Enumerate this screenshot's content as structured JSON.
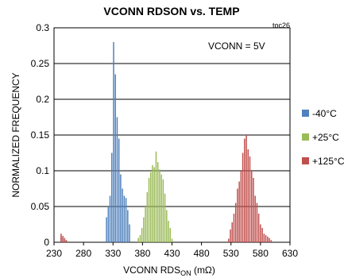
{
  "chart_data": {
    "type": "bar",
    "title": "VCONN RDSON vs. TEMP",
    "tag": "toc26",
    "annotation": "VCONN = 5V",
    "xlabel": {
      "main": "VCONN RDS",
      "sub": "ON",
      "unit": " (mΩ)"
    },
    "ylabel": "NORMALIZED FREQUENCY",
    "xlim": [
      230,
      630
    ],
    "ylim": [
      0,
      0.3
    ],
    "xticks": [
      230,
      280,
      330,
      380,
      430,
      480,
      530,
      580,
      630
    ],
    "yticks": [
      0,
      0.05,
      0.1,
      0.15,
      0.2,
      0.25,
      0.3
    ],
    "ytick_labels": [
      "0",
      "0.05",
      "0.1",
      "0.15",
      "0.2",
      "0.25",
      "0.3"
    ],
    "grid": true,
    "legend_position": "right",
    "series": [
      {
        "name": "-40°C",
        "color": "#4f81bd",
        "x": [
          242,
          245,
          248,
          250,
          319,
          322,
          325,
          328,
          331,
          334,
          337,
          340,
          343,
          346,
          349,
          352,
          355,
          358
        ],
        "values": [
          0.008,
          0.006,
          0.004,
          0.002,
          0.035,
          0.05,
          0.065,
          0.125,
          0.28,
          0.235,
          0.175,
          0.145,
          0.095,
          0.075,
          0.065,
          0.062,
          0.045,
          0.025
        ]
      },
      {
        "name": "+25°C",
        "color": "#9bbb59",
        "x": [
          373,
          376,
          379,
          382,
          385,
          388,
          391,
          394,
          397,
          400,
          403,
          406,
          409,
          412,
          415,
          418,
          421,
          424,
          427,
          430
        ],
        "values": [
          0.006,
          0.01,
          0.02,
          0.035,
          0.05,
          0.07,
          0.09,
          0.098,
          0.108,
          0.105,
          0.127,
          0.112,
          0.102,
          0.095,
          0.088,
          0.068,
          0.045,
          0.03,
          0.02,
          0.005
        ]
      },
      {
        "name": "+125°C",
        "color": "#c0504d",
        "x": [
          242,
          245,
          248,
          251,
          526,
          529,
          532,
          535,
          538,
          541,
          544,
          547,
          550,
          553,
          556,
          559,
          562,
          565,
          568,
          571,
          574,
          577,
          580,
          583,
          586,
          589,
          592,
          595,
          598
        ],
        "values": [
          0.012,
          0.009,
          0.006,
          0.003,
          0.005,
          0.018,
          0.028,
          0.04,
          0.055,
          0.075,
          0.085,
          0.1,
          0.125,
          0.145,
          0.15,
          0.13,
          0.12,
          0.1,
          0.09,
          0.065,
          0.055,
          0.04,
          0.025,
          0.02,
          0.012,
          0.01,
          0.008,
          0.006,
          0.003
        ]
      }
    ]
  }
}
